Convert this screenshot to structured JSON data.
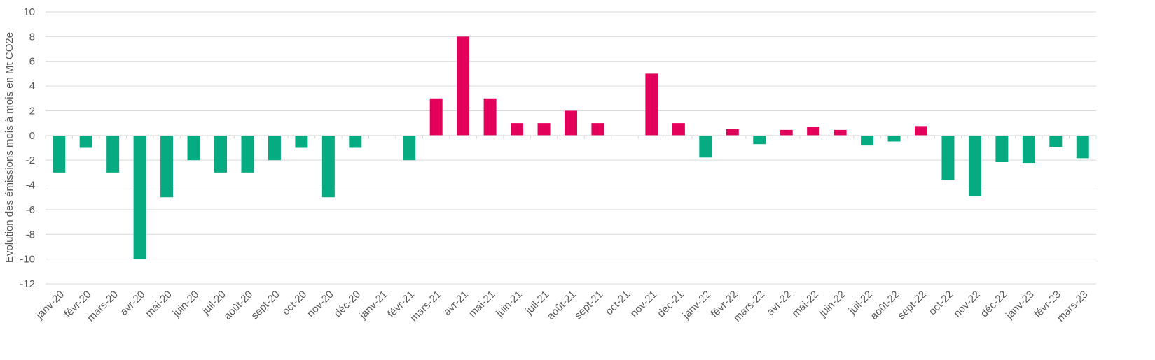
{
  "chart_data": {
    "type": "bar",
    "title": "",
    "xlabel": "",
    "ylabel": "Evolution des émissions mois à mois en Mt CO2e",
    "ylim": [
      -12,
      10
    ],
    "yticks": [
      10,
      8,
      6,
      4,
      2,
      0,
      -2,
      -4,
      -6,
      -8,
      -10,
      -12
    ],
    "grid": true,
    "colors": {
      "positive": "#E2005A",
      "negative": "#07AB82",
      "grid": "#D9D9D9",
      "text": "#595959"
    },
    "categories": [
      "janv-20",
      "févr-20",
      "mars-20",
      "avr-20",
      "mai-20",
      "juin-20",
      "juil-20",
      "août-20",
      "sept-20",
      "oct-20",
      "nov-20",
      "déc-20",
      "janv-21",
      "févr-21",
      "mars-21",
      "avr-21",
      "mai-21",
      "juin-21",
      "juil-21",
      "août-21",
      "sept-21",
      "oct-21",
      "nov-21",
      "déc-21",
      "janv-22",
      "févr-22",
      "mars-22",
      "avr-22",
      "mai-22",
      "juin-22",
      "juil-22",
      "août-22",
      "sept-22",
      "oct-22",
      "nov-22",
      "déc-22",
      "janv-23",
      "févr-23",
      "mars-23"
    ],
    "values": [
      -3,
      -1,
      -3,
      -10,
      -5,
      -2,
      -3,
      -3,
      -2,
      -1,
      -5,
      -1,
      0,
      -2,
      3,
      8,
      3,
      1,
      1,
      2,
      1,
      0,
      5,
      1,
      -1.78,
      0.5,
      -0.7,
      0.45,
      0.7,
      0.45,
      -0.81,
      -0.49,
      0.76,
      -3.6,
      -4.9,
      -2.16,
      -2.22,
      -0.92,
      -1.84
    ]
  }
}
